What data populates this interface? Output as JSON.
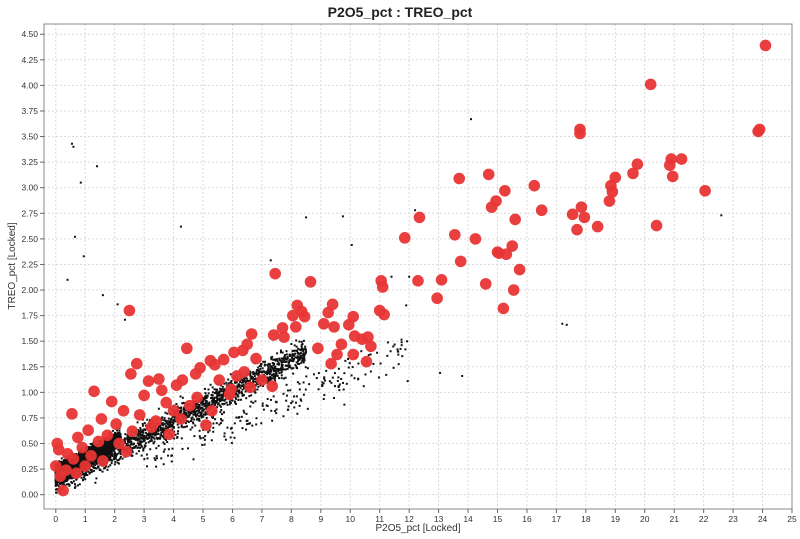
{
  "chart_data": {
    "type": "scatter",
    "title": "P2O5_pct : TREO_pct",
    "xlabel": "P2O5_pct [Locked]",
    "ylabel": "TREO_pct [Locked]",
    "xlim": [
      -0.4,
      25
    ],
    "ylim": [
      -0.14,
      4.6
    ],
    "xticks": [
      0,
      1,
      2,
      3,
      4,
      5,
      6,
      7,
      8,
      9,
      10,
      11,
      12,
      13,
      14,
      15,
      16,
      17,
      18,
      19,
      20,
      21,
      22,
      23,
      24,
      25
    ],
    "yticks": [
      "0.00",
      "0.25",
      "0.50",
      "0.75",
      "1.00",
      "1.25",
      "1.50",
      "1.75",
      "2.00",
      "2.25",
      "2.50",
      "2.75",
      "3.00",
      "3.25",
      "3.50",
      "3.75",
      "4.00",
      "4.25",
      "4.50"
    ],
    "grid": true,
    "series": [
      {
        "color": "#e83535",
        "marker": "large-circle",
        "points": [
          [
            24.1,
            4.39
          ],
          [
            20.2,
            4.01
          ],
          [
            17.8,
            3.57
          ],
          [
            17.8,
            3.53
          ],
          [
            23.9,
            3.57
          ],
          [
            23.85,
            3.55
          ],
          [
            19.75,
            3.23
          ],
          [
            20.9,
            3.28
          ],
          [
            21.25,
            3.28
          ],
          [
            20.85,
            3.22
          ],
          [
            20.95,
            3.11
          ],
          [
            19.6,
            3.14
          ],
          [
            19.0,
            3.1
          ],
          [
            18.85,
            3.02
          ],
          [
            18.9,
            2.96
          ],
          [
            18.8,
            2.87
          ],
          [
            18.4,
            2.62
          ],
          [
            17.55,
            2.74
          ],
          [
            17.7,
            2.59
          ],
          [
            17.85,
            2.81
          ],
          [
            17.95,
            2.71
          ],
          [
            16.25,
            3.02
          ],
          [
            16.5,
            2.78
          ],
          [
            20.4,
            2.63
          ],
          [
            22.05,
            2.97
          ],
          [
            14.7,
            3.13
          ],
          [
            15.25,
            2.97
          ],
          [
            14.8,
            2.81
          ],
          [
            14.95,
            2.87
          ],
          [
            15.6,
            2.69
          ],
          [
            13.7,
            3.09
          ],
          [
            13.55,
            2.54
          ],
          [
            14.25,
            2.5
          ],
          [
            15.05,
            2.36
          ],
          [
            15.5,
            2.43
          ],
          [
            15.0,
            2.37
          ],
          [
            15.3,
            2.35
          ],
          [
            13.75,
            2.28
          ],
          [
            15.75,
            2.2
          ],
          [
            14.6,
            2.06
          ],
          [
            15.55,
            2.0
          ],
          [
            15.2,
            1.82
          ],
          [
            12.35,
            2.71
          ],
          [
            11.85,
            2.51
          ],
          [
            12.3,
            2.09
          ],
          [
            13.1,
            2.1
          ],
          [
            12.95,
            1.92
          ],
          [
            11.05,
            2.09
          ],
          [
            11.1,
            2.03
          ],
          [
            11.0,
            1.8
          ],
          [
            11.15,
            1.76
          ],
          [
            7.45,
            2.16
          ],
          [
            8.65,
            2.08
          ],
          [
            8.05,
            1.75
          ],
          [
            8.2,
            1.85
          ],
          [
            8.35,
            1.79
          ],
          [
            8.45,
            1.74
          ],
          [
            9.4,
            1.86
          ],
          [
            9.25,
            1.78
          ],
          [
            9.1,
            1.67
          ],
          [
            10.1,
            1.74
          ],
          [
            9.95,
            1.66
          ],
          [
            9.45,
            1.64
          ],
          [
            10.4,
            1.52
          ],
          [
            10.6,
            1.54
          ],
          [
            10.15,
            1.55
          ],
          [
            9.7,
            1.47
          ],
          [
            10.7,
            1.45
          ],
          [
            10.55,
            1.3
          ],
          [
            10.1,
            1.37
          ],
          [
            9.55,
            1.37
          ],
          [
            9.35,
            1.28
          ],
          [
            8.9,
            1.43
          ],
          [
            8.15,
            1.64
          ],
          [
            7.7,
            1.63
          ],
          [
            7.75,
            1.54
          ],
          [
            7.4,
            1.56
          ],
          [
            6.65,
            1.57
          ],
          [
            6.5,
            1.47
          ],
          [
            6.35,
            1.41
          ],
          [
            6.05,
            1.39
          ],
          [
            5.7,
            1.32
          ],
          [
            5.4,
            1.27
          ],
          [
            5.25,
            1.31
          ],
          [
            4.9,
            1.24
          ],
          [
            4.45,
            1.43
          ],
          [
            4.1,
            1.07
          ],
          [
            3.5,
            1.13
          ],
          [
            3.15,
            1.11
          ],
          [
            2.75,
            1.28
          ],
          [
            2.55,
            1.18
          ],
          [
            2.5,
            1.8
          ],
          [
            1.3,
            1.01
          ],
          [
            0.55,
            0.79
          ],
          [
            0.05,
            0.5
          ],
          [
            0.1,
            0.44
          ],
          [
            0.0,
            0.28
          ],
          [
            0.25,
            0.04
          ],
          [
            5.1,
            0.68
          ],
          [
            5.95,
            1.03
          ],
          [
            6.8,
            1.33
          ],
          [
            7.35,
            1.06
          ],
          [
            6.15,
            1.16
          ],
          [
            5.9,
            0.98
          ],
          [
            4.55,
            0.87
          ],
          [
            4.3,
            1.12
          ],
          [
            3.75,
            0.9
          ],
          [
            3.0,
            0.97
          ],
          [
            2.3,
            0.82
          ],
          [
            1.9,
            0.91
          ],
          [
            1.55,
            0.74
          ],
          [
            1.1,
            0.63
          ],
          [
            0.75,
            0.56
          ],
          [
            0.4,
            0.4
          ],
          [
            2.85,
            0.78
          ],
          [
            3.4,
            0.72
          ],
          [
            4.0,
            0.82
          ],
          [
            4.8,
            0.95
          ],
          [
            5.55,
            1.12
          ],
          [
            6.4,
            1.2
          ],
          [
            7.0,
            1.12
          ],
          [
            3.6,
            1.02
          ],
          [
            4.75,
            1.18
          ],
          [
            2.05,
            0.69
          ],
          [
            1.75,
            0.58
          ],
          [
            2.6,
            0.62
          ],
          [
            3.25,
            0.66
          ],
          [
            0.9,
            0.46
          ],
          [
            1.45,
            0.52
          ],
          [
            0.6,
            0.35
          ],
          [
            0.15,
            0.18
          ],
          [
            1.2,
            0.38
          ],
          [
            2.15,
            0.5
          ],
          [
            3.85,
            0.59
          ],
          [
            5.3,
            0.82
          ],
          [
            6.6,
            1.05
          ],
          [
            4.25,
            0.74
          ],
          [
            1.0,
            0.28
          ],
          [
            0.35,
            0.24
          ],
          [
            0.7,
            0.21
          ],
          [
            1.6,
            0.33
          ],
          [
            2.4,
            0.42
          ]
        ]
      }
    ]
  }
}
